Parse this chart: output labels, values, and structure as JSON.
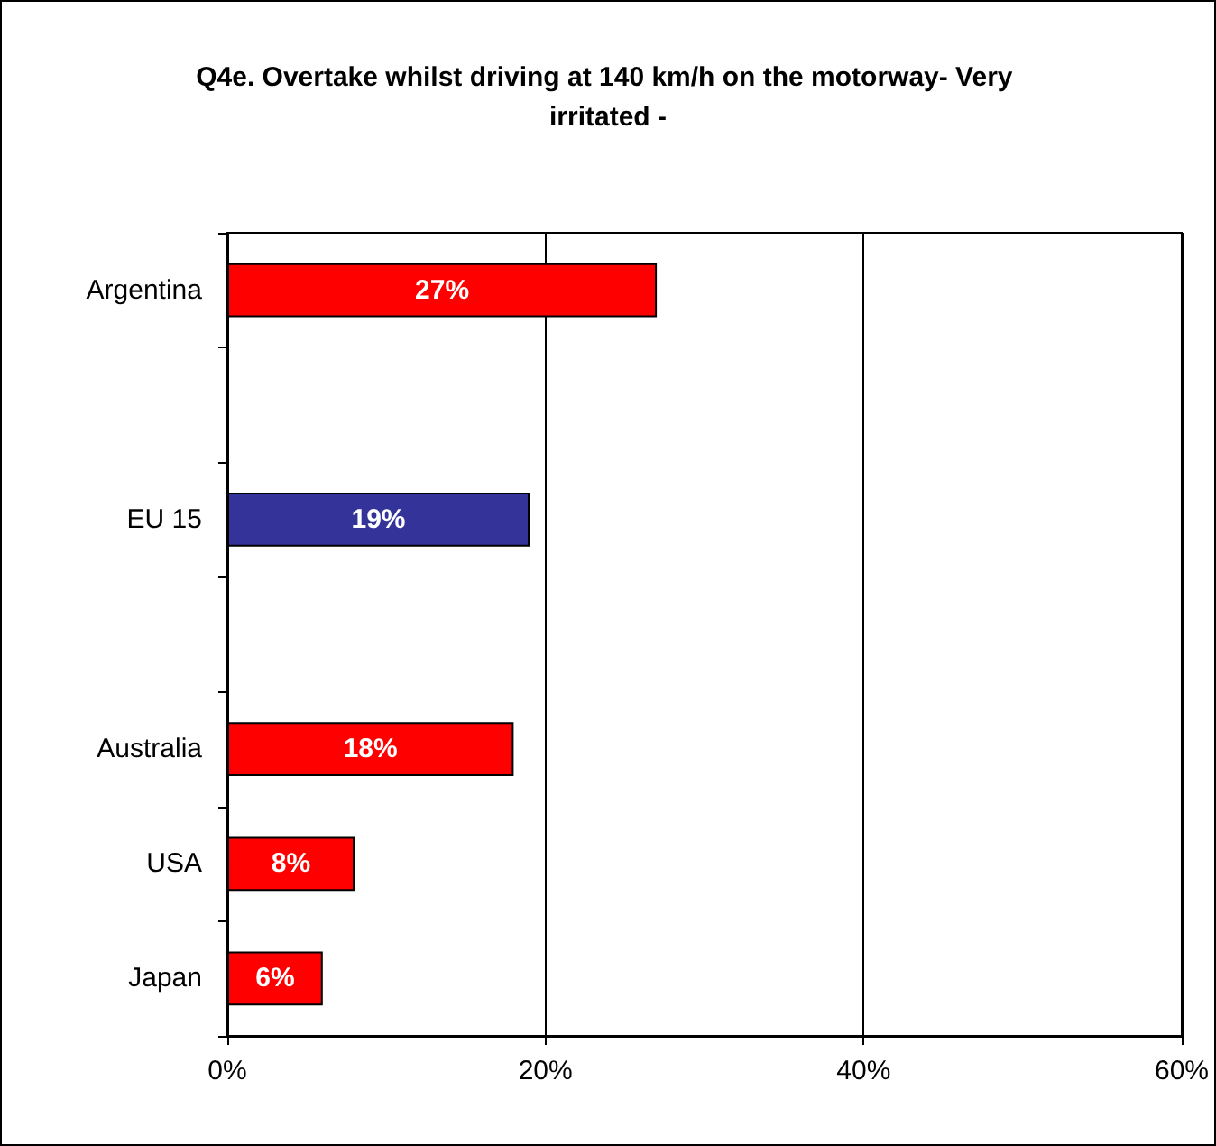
{
  "chart_data": {
    "type": "bar",
    "orientation": "horizontal",
    "title": "Q4e. Overtake whilst driving at 140 km/h on the motorway- Very irritated -",
    "categories": [
      "Argentina",
      null,
      "EU 15",
      null,
      "Australia",
      "USA",
      "Japan"
    ],
    "values": [
      27,
      null,
      19,
      null,
      18,
      8,
      6
    ],
    "colors": [
      "#ff0000",
      null,
      "#333399",
      null,
      "#ff0000",
      "#ff0000",
      "#ff0000"
    ],
    "value_labels": [
      "27%",
      null,
      "19%",
      null,
      "18%",
      "8%",
      "6%"
    ],
    "xlim": [
      0,
      60
    ],
    "xticks": [
      {
        "value": 0,
        "label": "0%"
      },
      {
        "value": 20,
        "label": "20%"
      },
      {
        "value": 40,
        "label": "40%"
      },
      {
        "value": 60,
        "label": "60%"
      }
    ],
    "grid": "x"
  }
}
